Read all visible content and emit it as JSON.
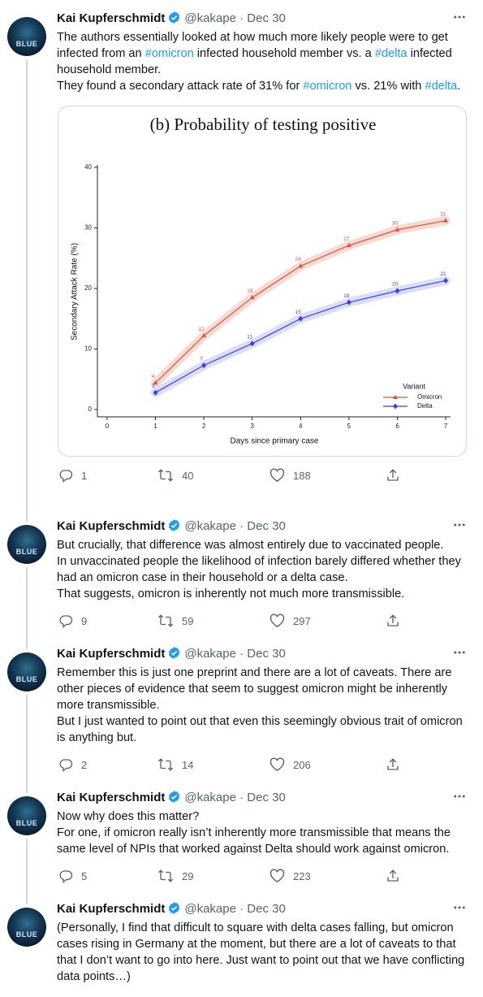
{
  "tweets": [
    {
      "avatar_label": "BLUE",
      "name": "Kai Kupferschmidt",
      "meta": "@kakape · Dec 30",
      "paragraphs": [
        [
          {
            "text": "The authors essentially looked at how much more likely people were to get infected from an "
          },
          {
            "link": "#omicron"
          },
          {
            "text": " infected household member vs. a "
          },
          {
            "link": "#delta"
          },
          {
            "text": " infected household member."
          }
        ],
        [
          {
            "text": "They found a secondary attack rate of 31% for "
          },
          {
            "link": "#omicron"
          },
          {
            "text": " vs. 21% with "
          },
          {
            "link": "#delta"
          },
          {
            "text": "."
          }
        ]
      ],
      "chart_data": {
        "type": "line",
        "title": "(b) Probability of testing positive",
        "x_label": "Days since primary case",
        "y_label": "Secondary Attack Rate (%)",
        "x": [
          1,
          2,
          3,
          4,
          5,
          6,
          7
        ],
        "xlim": [
          -0.2,
          7.1
        ],
        "xticks": [
          0,
          1,
          2,
          3,
          4,
          5,
          6,
          7
        ],
        "ylim": [
          -1.2,
          40
        ],
        "yticks": [
          0,
          10,
          20,
          30,
          40
        ],
        "legend_title": "Variant",
        "legend": "lower right",
        "series": [
          {
            "name": "Omicron",
            "color": "#d9543c",
            "band_color": "#f6d3cc",
            "marker": "triangle",
            "values": [
              4.4,
              12.2,
              18.5,
              23.7,
              27.1,
              29.7,
              31.2
            ],
            "value_labels": [
              "4",
              "12",
              "19",
              "24",
              "27",
              "30",
              "31"
            ]
          },
          {
            "name": "Delta",
            "color": "#3b3fe6",
            "band_color": "#d5d8f8",
            "marker": "diamond",
            "values": [
              2.8,
              7.3,
              10.9,
              15.0,
              17.7,
              19.6,
              21.3
            ],
            "value_labels": [
              "3",
              "7",
              "11",
              "15",
              "18",
              "20",
              "21"
            ]
          }
        ]
      },
      "replies": 1,
      "retweets": 40,
      "likes": 188
    },
    {
      "avatar_label": "BLUE",
      "name": "Kai Kupferschmidt",
      "meta": "@kakape · Dec 30",
      "paragraphs": [
        [
          {
            "text": "But crucially, that difference was almost entirely due to vaccinated people."
          }
        ],
        [
          {
            "text": "In unvaccinated people the likelihood of infection barely differed whether they had an omicron case in their household or a delta case."
          }
        ],
        [
          {
            "text": "That suggests, omicron is inherently not much more transmissible."
          }
        ]
      ],
      "replies": 9,
      "retweets": 59,
      "likes": 297
    },
    {
      "avatar_label": "BLUE",
      "name": "Kai Kupferschmidt",
      "meta": "@kakape · Dec 30",
      "paragraphs": [
        [
          {
            "text": "Remember this is just one preprint and there are a lot of caveats. There are other pieces of evidence that seem to suggest omicron might be inherently more transmissible."
          }
        ],
        [
          {
            "text": "But I just wanted to point out that even this seemingly obvious trait of omicron is anything but."
          }
        ]
      ],
      "replies": 2,
      "retweets": 14,
      "likes": 206
    },
    {
      "avatar_label": "BLUE",
      "name": "Kai Kupferschmidt",
      "meta": "@kakape · Dec 30",
      "paragraphs": [
        [
          {
            "text": "Now why does this matter?"
          }
        ],
        [
          {
            "text": "For one, if omicron really isn’t inherently more transmissible that means the same level of NPIs that worked against Delta should work against omicron."
          }
        ]
      ],
      "replies": 5,
      "retweets": 29,
      "likes": 223
    },
    {
      "avatar_label": "BLUE",
      "name": "Kai Kupferschmidt",
      "meta": "@kakape · Dec 30",
      "paragraphs": [
        [
          {
            "text": "(Personally, I find that difficult to square with delta cases falling, but omicron cases rising in Germany at the moment, but there are a lot of caveats to that that I don’t want to go into here. Just want to point out that we have conflicting data points…)"
          }
        ]
      ]
    }
  ]
}
